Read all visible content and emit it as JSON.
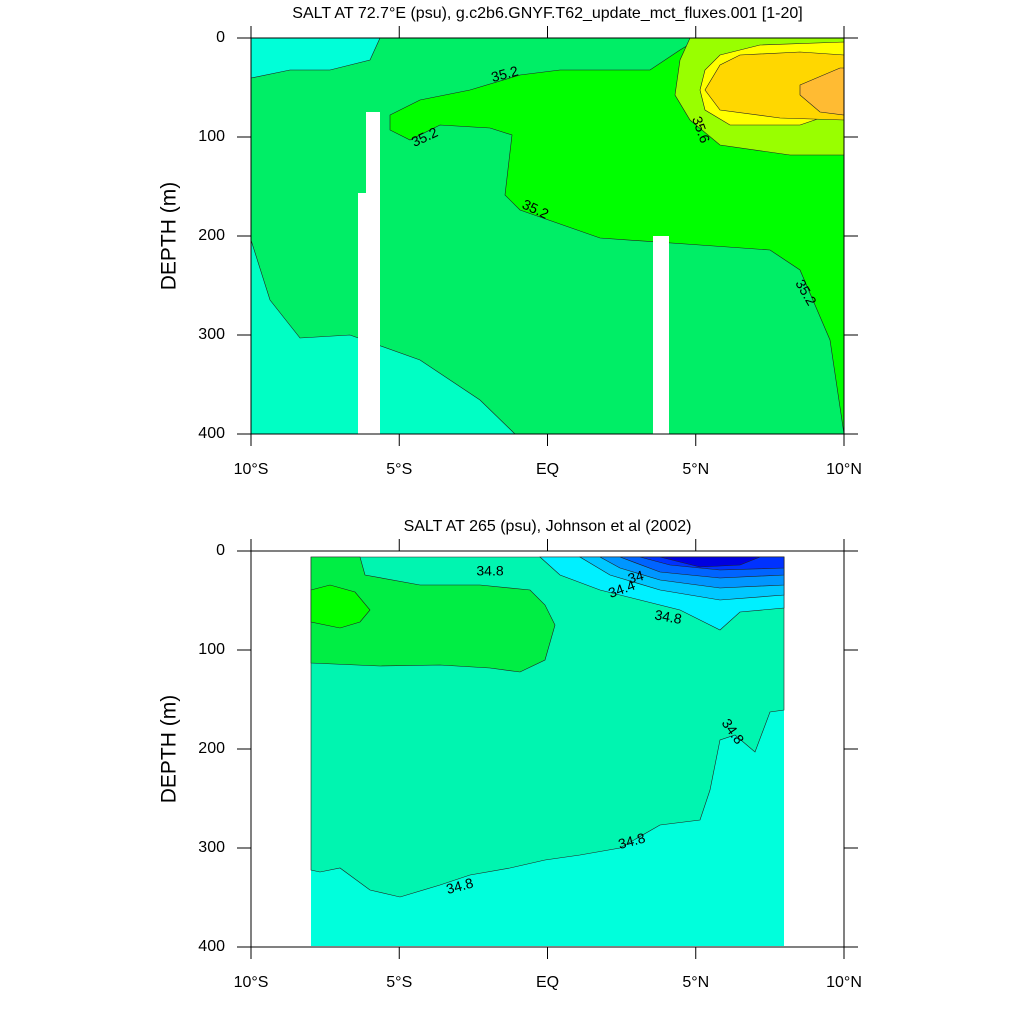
{
  "chart_data": [
    {
      "type": "contour",
      "title": "SALT AT  72.7°E (psu), g.c2b6.GNYF.T62_update_mct_fluxes.001 [1-20]",
      "ylabel": "DEPTH (m)",
      "xlim": [
        -10,
        10
      ],
      "ylim": [
        400,
        0
      ],
      "xticks": [
        {
          "value": -10,
          "label": "10°S"
        },
        {
          "value": -5,
          "label": "5°S"
        },
        {
          "value": 0,
          "label": "EQ"
        },
        {
          "value": 5,
          "label": "5°N"
        },
        {
          "value": 10,
          "label": "10°N"
        }
      ],
      "yticks": [
        0,
        100,
        200,
        300,
        400
      ],
      "contour_labels": [
        35.2,
        35.2,
        35.2,
        35.6,
        35.2
      ]
    },
    {
      "type": "contour",
      "title": "SALT AT 265 (psu), Johnson et al (2002)",
      "ylabel": "DEPTH (m)",
      "xlim": [
        -10,
        10
      ],
      "ylim": [
        400,
        0
      ],
      "xticks": [
        {
          "value": -10,
          "label": "10°S"
        },
        {
          "value": -5,
          "label": "5°S"
        },
        {
          "value": 0,
          "label": "EQ"
        },
        {
          "value": 5,
          "label": "5°N"
        },
        {
          "value": 10,
          "label": "10°N"
        }
      ],
      "yticks": [
        0,
        100,
        200,
        300,
        400
      ],
      "contour_labels": [
        34.8,
        34,
        34.4,
        34.8,
        34.8,
        34.8,
        34.8
      ]
    }
  ]
}
